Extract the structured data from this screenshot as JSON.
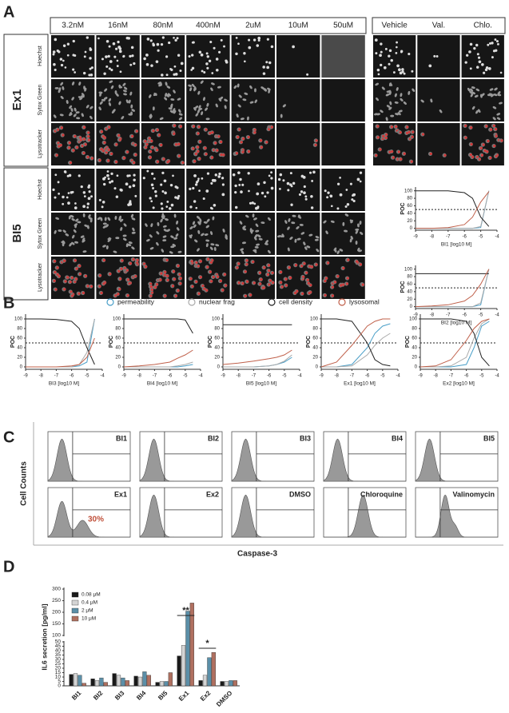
{
  "panel_letters": [
    "A",
    "B",
    "C",
    "D"
  ],
  "panel_a": {
    "concentrations": [
      "3.2nM",
      "16nM",
      "80nM",
      "400nM",
      "2uM",
      "10uM",
      "50uM"
    ],
    "controls": [
      "Vehicle",
      "Val.",
      "Chlo."
    ],
    "groups": [
      {
        "name": "Ex1",
        "channels": [
          "Hoechst",
          "Sytox Green",
          "Lysotracker"
        ]
      },
      {
        "name": "BI5",
        "channels": [
          "Hoechst",
          "Sytox Green",
          "Lysotracker"
        ]
      }
    ]
  },
  "chart_data": [
    {
      "type": "line",
      "x_label": "BI1 [log10 M]",
      "y_label": "POC",
      "x": [
        -9,
        -8,
        -7,
        -6,
        -5.5,
        -5,
        -4.5
      ],
      "xlim": [
        -9,
        -4
      ],
      "ylim": [
        -5,
        110
      ],
      "xticks": [
        -9,
        -8,
        -7,
        -6,
        -5,
        -4
      ],
      "yticks": [
        0,
        20,
        40,
        60,
        80,
        100
      ],
      "reference_line": 50,
      "series": [
        {
          "name": "permeability",
          "color": "#4a9fc8",
          "values": [
            0,
            0,
            0,
            0,
            0,
            2,
            100
          ]
        },
        {
          "name": "nuclear frag",
          "color": "#aaaaaa",
          "values": [
            0,
            0,
            0,
            0,
            0,
            5,
            100
          ]
        },
        {
          "name": "cell density",
          "color": "#222222",
          "values": [
            100,
            100,
            100,
            95,
            80,
            30,
            5
          ]
        },
        {
          "name": "lysosomal",
          "color": "#c0604a",
          "values": [
            0,
            0,
            2,
            10,
            30,
            70,
            98
          ]
        }
      ]
    },
    {
      "type": "line",
      "x_label": "BI2 [log10 M]",
      "y_label": "POC",
      "x": [
        -9,
        -8,
        -7,
        -6,
        -5.5,
        -5,
        -4.5
      ],
      "xlim": [
        -9,
        -4
      ],
      "ylim": [
        -5,
        110
      ],
      "xticks": [
        -9,
        -8,
        -7,
        -6,
        -5,
        -4
      ],
      "yticks": [
        0,
        20,
        40,
        60,
        80,
        100
      ],
      "reference_line": 50,
      "series": [
        {
          "name": "permeability",
          "color": "#4a9fc8",
          "values": [
            0,
            0,
            0,
            0,
            0,
            5,
            100
          ]
        },
        {
          "name": "nuclear frag",
          "color": "#aaaaaa",
          "values": [
            0,
            0,
            0,
            0,
            0,
            10,
            100
          ]
        },
        {
          "name": "cell density",
          "color": "#222222",
          "values": [
            88,
            88,
            88,
            88,
            88,
            88,
            88
          ]
        },
        {
          "name": "lysosomal",
          "color": "#c0604a",
          "values": [
            0,
            2,
            5,
            15,
            30,
            60,
            100
          ]
        }
      ]
    },
    {
      "type": "line",
      "x_label": "BI3 [log10 M]",
      "y_label": "POC",
      "x": [
        -9,
        -8,
        -7,
        -6,
        -5.5,
        -5,
        -4.5
      ],
      "xlim": [
        -9,
        -4
      ],
      "ylim": [
        -5,
        110
      ],
      "xticks": [
        -9,
        -8,
        -7,
        -6,
        -5,
        -4
      ],
      "yticks": [
        0,
        20,
        40,
        60,
        80,
        100
      ],
      "reference_line": 50,
      "series": [
        {
          "name": "permeability",
          "color": "#4a9fc8",
          "values": [
            0,
            0,
            0,
            0,
            2,
            10,
            100
          ]
        },
        {
          "name": "nuclear frag",
          "color": "#aaaaaa",
          "values": [
            0,
            0,
            0,
            0,
            5,
            30,
            100
          ]
        },
        {
          "name": "cell density",
          "color": "#222222",
          "values": [
            100,
            100,
            99,
            95,
            80,
            40,
            5
          ]
        },
        {
          "name": "lysosomal",
          "color": "#c0604a",
          "values": [
            0,
            0,
            0,
            2,
            5,
            20,
            60
          ]
        }
      ]
    },
    {
      "type": "line",
      "x_label": "BI4 [log10 M]",
      "y_label": "POC",
      "x": [
        -9,
        -8,
        -7,
        -6,
        -5.5,
        -5,
        -4.5
      ],
      "xlim": [
        -9,
        -4
      ],
      "ylim": [
        -5,
        110
      ],
      "xticks": [
        -9,
        -8,
        -7,
        -6,
        -5,
        -4
      ],
      "yticks": [
        0,
        20,
        40,
        60,
        80,
        100
      ],
      "reference_line": 50,
      "series": [
        {
          "name": "permeability",
          "color": "#4a9fc8",
          "values": [
            0,
            0,
            0,
            0,
            0,
            2,
            5
          ]
        },
        {
          "name": "nuclear frag",
          "color": "#aaaaaa",
          "values": [
            0,
            0,
            0,
            0,
            2,
            5,
            10
          ]
        },
        {
          "name": "cell density",
          "color": "#222222",
          "values": [
            100,
            100,
            100,
            100,
            100,
            98,
            70
          ]
        },
        {
          "name": "lysosomal",
          "color": "#c0604a",
          "values": [
            0,
            2,
            5,
            10,
            18,
            25,
            35
          ]
        }
      ]
    },
    {
      "type": "line",
      "x_label": "BI5 [log10 M]",
      "y_label": "POC",
      "x": [
        -9,
        -8,
        -7,
        -6,
        -5.5,
        -5,
        -4.5
      ],
      "xlim": [
        -9,
        -4
      ],
      "ylim": [
        -5,
        110
      ],
      "xticks": [
        -9,
        -8,
        -7,
        -6,
        -5,
        -4
      ],
      "yticks": [
        0,
        20,
        40,
        60,
        80,
        100
      ],
      "reference_line": 50,
      "series": [
        {
          "name": "permeability",
          "color": "#4a9fc8",
          "values": [
            0,
            0,
            0,
            2,
            5,
            10,
            20
          ]
        },
        {
          "name": "nuclear frag",
          "color": "#aaaaaa",
          "values": [
            0,
            0,
            0,
            2,
            5,
            12,
            25
          ]
        },
        {
          "name": "cell density",
          "color": "#222222",
          "values": [
            88,
            88,
            88,
            88,
            88,
            88,
            88
          ]
        },
        {
          "name": "lysosomal",
          "color": "#c0604a",
          "values": [
            5,
            8,
            12,
            17,
            20,
            25,
            35
          ]
        }
      ]
    },
    {
      "type": "line",
      "x_label": "Ex1 [log10 M]",
      "y_label": "POC",
      "x": [
        -9,
        -8,
        -7,
        -6,
        -5.5,
        -5,
        -4.5
      ],
      "xlim": [
        -9,
        -4
      ],
      "ylim": [
        -5,
        110
      ],
      "xticks": [
        -9,
        -8,
        -7,
        -6,
        -5,
        -4
      ],
      "yticks": [
        0,
        20,
        40,
        60,
        80,
        100
      ],
      "reference_line": 50,
      "series": [
        {
          "name": "permeability",
          "color": "#4a9fc8",
          "values": [
            0,
            0,
            5,
            40,
            70,
            85,
            90
          ]
        },
        {
          "name": "nuclear frag",
          "color": "#aaaaaa",
          "values": [
            0,
            0,
            2,
            25,
            45,
            60,
            70
          ]
        },
        {
          "name": "cell density",
          "color": "#222222",
          "values": [
            100,
            100,
            95,
            50,
            15,
            5,
            2
          ]
        },
        {
          "name": "lysosomal",
          "color": "#c0604a",
          "values": [
            0,
            10,
            45,
            85,
            95,
            100,
            100
          ]
        }
      ]
    },
    {
      "type": "line",
      "x_label": "Ex2 [log10 M]",
      "y_label": "POC",
      "x": [
        -9,
        -8,
        -7,
        -6,
        -5.5,
        -5,
        -4.5
      ],
      "xlim": [
        -9,
        -4
      ],
      "ylim": [
        -5,
        110
      ],
      "xticks": [
        -9,
        -8,
        -7,
        -6,
        -5,
        -4
      ],
      "yticks": [
        0,
        20,
        40,
        60,
        80,
        100
      ],
      "reference_line": 50,
      "series": [
        {
          "name": "permeability",
          "color": "#4a9fc8",
          "values": [
            0,
            0,
            0,
            5,
            40,
            85,
            95
          ]
        },
        {
          "name": "nuclear frag",
          "color": "#aaaaaa",
          "values": [
            0,
            0,
            2,
            20,
            60,
            90,
            100
          ]
        },
        {
          "name": "cell density",
          "color": "#222222",
          "values": [
            100,
            100,
            100,
            95,
            70,
            20,
            2
          ]
        },
        {
          "name": "lysosomal",
          "color": "#c0604a",
          "values": [
            0,
            2,
            15,
            55,
            80,
            95,
            100
          ]
        }
      ]
    },
    {
      "type": "bar",
      "y_label": "IL6 secretion [pg/ml]",
      "categories": [
        "BI1",
        "BI2",
        "BI3",
        "BI4",
        "BI5",
        "Ex1",
        "Ex2",
        "DMSO"
      ],
      "series": [
        {
          "name": "0.08 μM",
          "color": "#1a1a1a",
          "values": [
            13,
            8,
            14,
            11,
            4,
            34,
            6,
            5
          ]
        },
        {
          "name": "0.4 μM",
          "color": "#d4d4d4",
          "values": [
            14,
            6,
            12,
            10,
            5,
            46,
            12,
            5
          ]
        },
        {
          "name": "2 μM",
          "color": "#5b8fa8",
          "values": [
            12,
            9,
            9,
            16,
            5,
            205,
            32,
            6
          ]
        },
        {
          "name": "10 μM",
          "color": "#b07060",
          "values": [
            3,
            4,
            6,
            12,
            15,
            240,
            38,
            6
          ]
        }
      ],
      "ylim": [
        0,
        300
      ],
      "axis_break": [
        50,
        100
      ],
      "yticks": [
        0,
        5,
        10,
        15,
        20,
        25,
        30,
        35,
        40,
        45,
        50,
        100,
        150,
        200,
        250,
        300
      ],
      "annotations": [
        "**",
        "*"
      ]
    }
  ],
  "panel_c": {
    "histograms": [
      "BI1",
      "BI2",
      "BI3",
      "BI4",
      "BI5",
      "Ex1",
      "Ex2",
      "DMSO",
      "Chloroquine",
      "Valinomycin"
    ],
    "gate_label": "30%",
    "y_label": "Cell Counts",
    "x_label": "Caspase-3"
  }
}
